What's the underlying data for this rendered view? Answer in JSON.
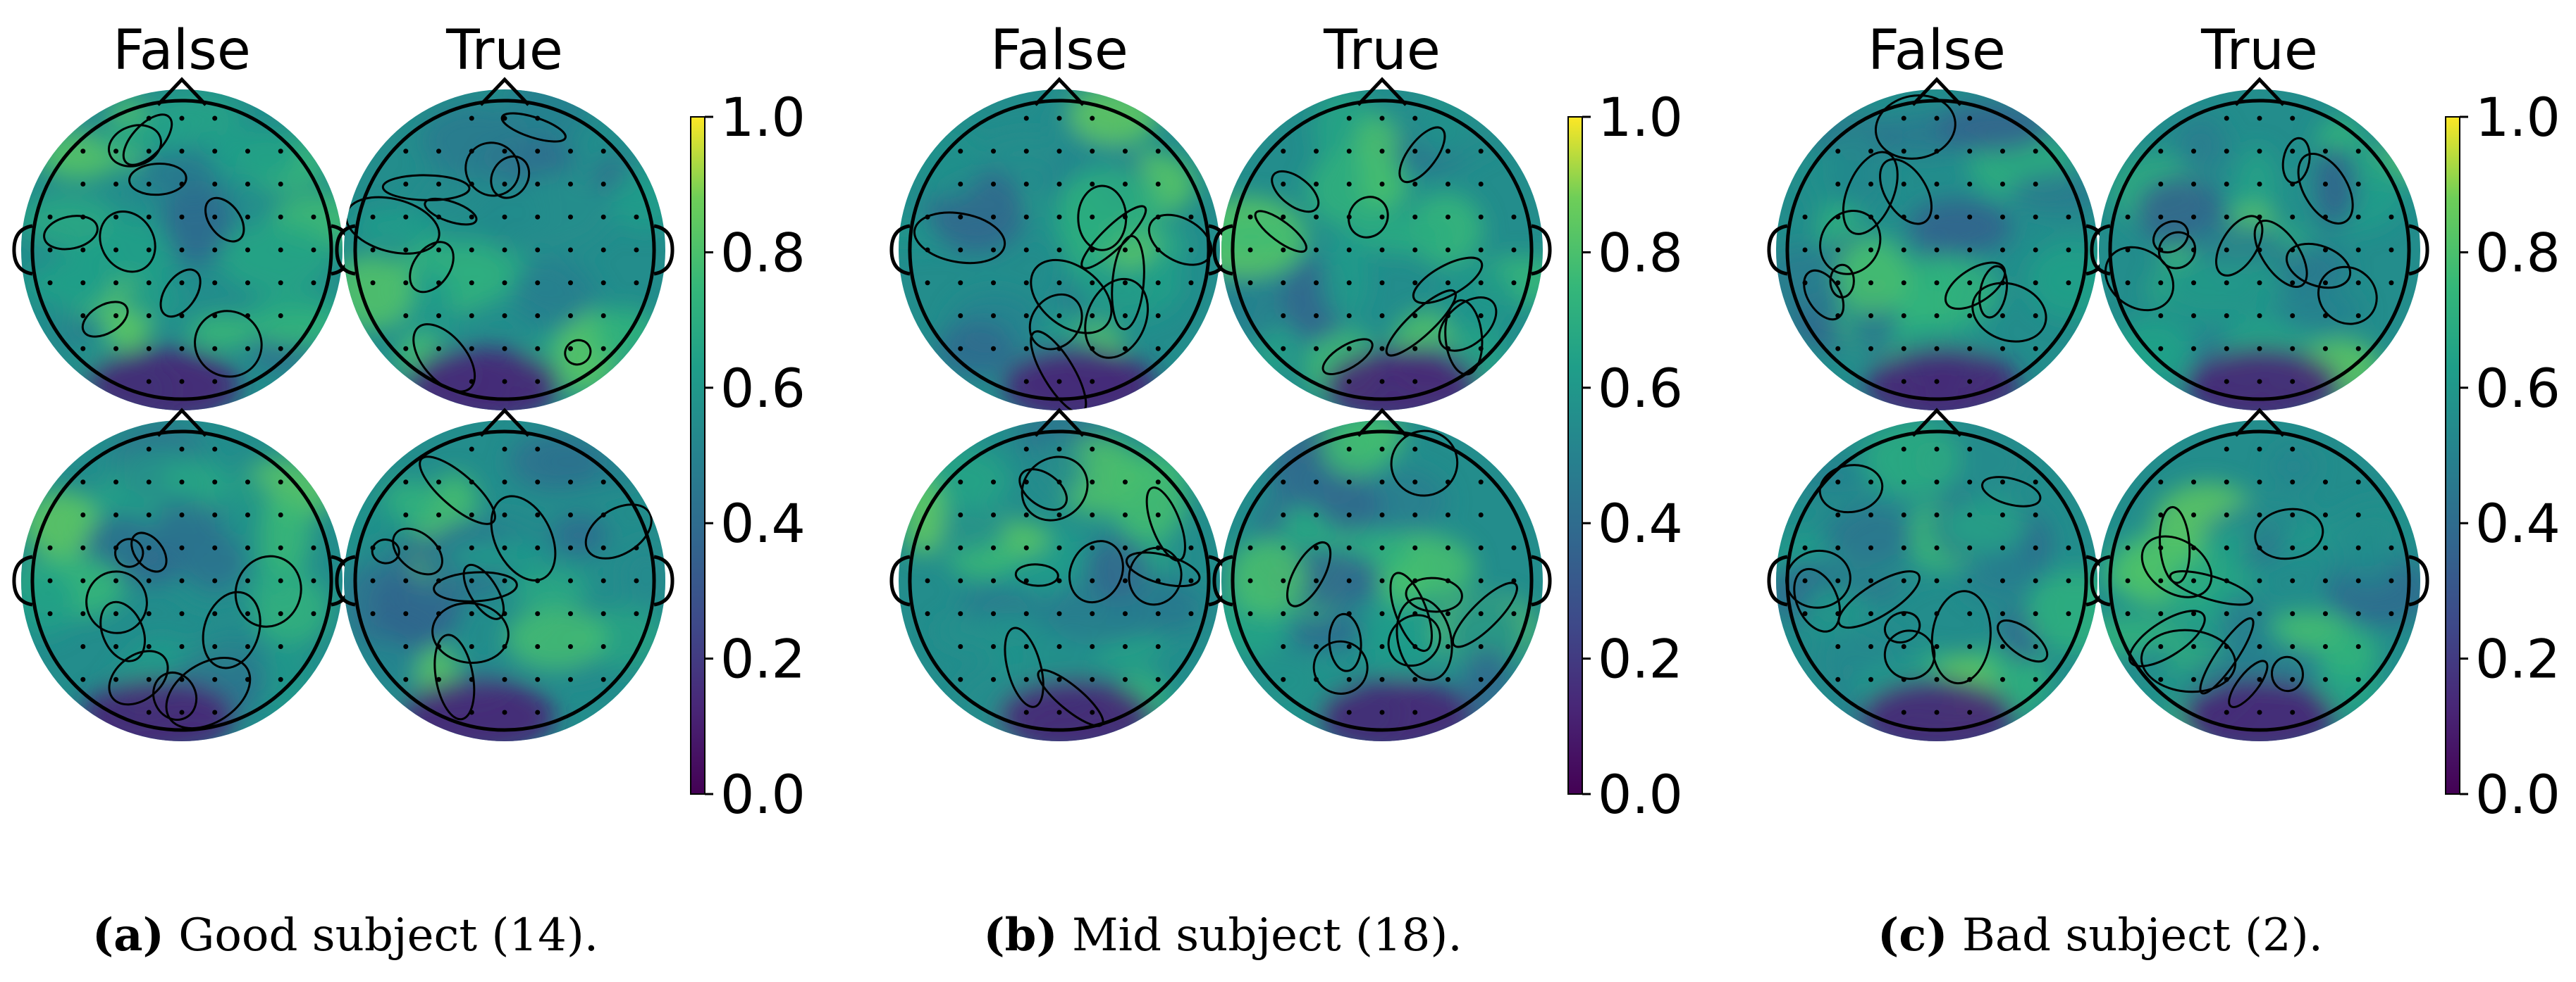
{
  "figure": {
    "panels": [
      {
        "id": "a",
        "column_titles": [
          "False",
          "True"
        ],
        "caption_label": "(a)",
        "caption_text": " Good subject (14)."
      },
      {
        "id": "b",
        "column_titles": [
          "False",
          "True"
        ],
        "caption_label": "(b)",
        "caption_text": " Mid subject (18)."
      },
      {
        "id": "c",
        "column_titles": [
          "False",
          "True"
        ],
        "caption_label": "(c)",
        "caption_text": " Bad subject (2)."
      }
    ],
    "colorbar": {
      "colormap": "viridis",
      "range": [
        0.0,
        1.0
      ],
      "ticks": [
        "0.0",
        "0.2",
        "0.4",
        "0.6",
        "0.8",
        "1.0"
      ]
    }
  }
}
